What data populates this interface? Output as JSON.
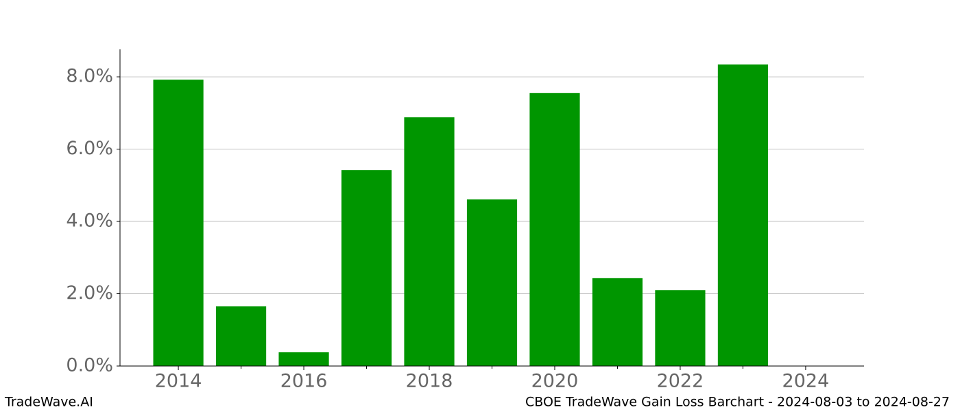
{
  "chart_data": {
    "type": "bar",
    "x": [
      2014,
      2015,
      2016,
      2017,
      2018,
      2019,
      2020,
      2021,
      2022,
      2023
    ],
    "values": [
      7.92,
      1.65,
      0.38,
      5.42,
      6.88,
      4.61,
      7.55,
      2.43,
      2.1,
      8.34
    ],
    "color": "#009600",
    "xlim": [
      2013.07,
      2024.93
    ],
    "xticks": [
      2014,
      2016,
      2018,
      2020,
      2022,
      2024
    ],
    "xminorticks": [
      2015,
      2017,
      2019,
      2021,
      2023
    ],
    "ylim": [
      0,
      8.76
    ],
    "yticks": [
      {
        "value": 0,
        "label": "0.0%"
      },
      {
        "value": 2,
        "label": "2.0%"
      },
      {
        "value": 4,
        "label": "4.0%"
      },
      {
        "value": 6,
        "label": "6.0%"
      },
      {
        "value": 8,
        "label": "8.0%"
      }
    ],
    "grid": true
  },
  "footer": {
    "left": "TradeWave.AI",
    "right": "CBOE TradeWave Gain Loss Barchart - 2024-08-03 to 2024-08-27"
  }
}
